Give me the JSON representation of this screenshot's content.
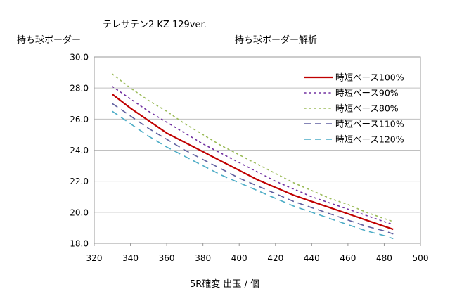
{
  "chart_data": {
    "type": "line",
    "subtitle": "テレサテン2 KZ 129ver.",
    "title": "持ち球ボーダー解析",
    "ylabel": "持ち球ボーダー",
    "xlabel": "5R確変 出玉 / 個",
    "xlim": [
      320,
      500
    ],
    "ylim": [
      18,
      30
    ],
    "xticks": [
      320,
      340,
      360,
      380,
      400,
      420,
      440,
      460,
      480,
      500
    ],
    "yticks": [
      "18.0",
      "20.0",
      "22.0",
      "24.0",
      "26.0",
      "28.0",
      "30.0"
    ],
    "grid": true,
    "legend_position": "top-right",
    "x": [
      330,
      340,
      350,
      360,
      370,
      380,
      390,
      400,
      410,
      420,
      430,
      440,
      450,
      460,
      470,
      480,
      485
    ],
    "series": [
      {
        "name": "時短ベース100%",
        "color": "#c00000",
        "dash": "solid",
        "values": [
          27.6,
          26.7,
          25.9,
          25.1,
          24.5,
          23.9,
          23.3,
          22.7,
          22.1,
          21.6,
          21.1,
          20.7,
          20.3,
          19.9,
          19.5,
          19.1,
          18.9
        ]
      },
      {
        "name": "時短ベース90%",
        "color": "#7030a0",
        "dash": "dot",
        "values": [
          28.1,
          27.3,
          26.5,
          25.8,
          25.1,
          24.4,
          23.8,
          23.2,
          22.6,
          22.0,
          21.5,
          21.0,
          20.6,
          20.2,
          19.8,
          19.4,
          19.2
        ]
      },
      {
        "name": "時短ベース80%",
        "color": "#9bbb59",
        "dash": "dot",
        "values": [
          28.9,
          28.0,
          27.2,
          26.5,
          25.7,
          25.0,
          24.3,
          23.7,
          23.1,
          22.5,
          21.9,
          21.4,
          20.9,
          20.5,
          20.0,
          19.6,
          19.4
        ]
      },
      {
        "name": "時短ベース110%",
        "color": "#5f5f9f",
        "dash": "dash",
        "values": [
          27.0,
          26.2,
          25.4,
          24.7,
          24.0,
          23.4,
          22.8,
          22.2,
          21.7,
          21.2,
          20.7,
          20.3,
          19.9,
          19.5,
          19.1,
          18.8,
          18.6
        ]
      },
      {
        "name": "時短ベース120%",
        "color": "#4bacc6",
        "dash": "dash",
        "values": [
          26.5,
          25.7,
          24.9,
          24.2,
          23.6,
          23.0,
          22.4,
          21.9,
          21.4,
          20.9,
          20.4,
          20.0,
          19.6,
          19.2,
          18.8,
          18.5,
          18.3
        ]
      }
    ]
  }
}
